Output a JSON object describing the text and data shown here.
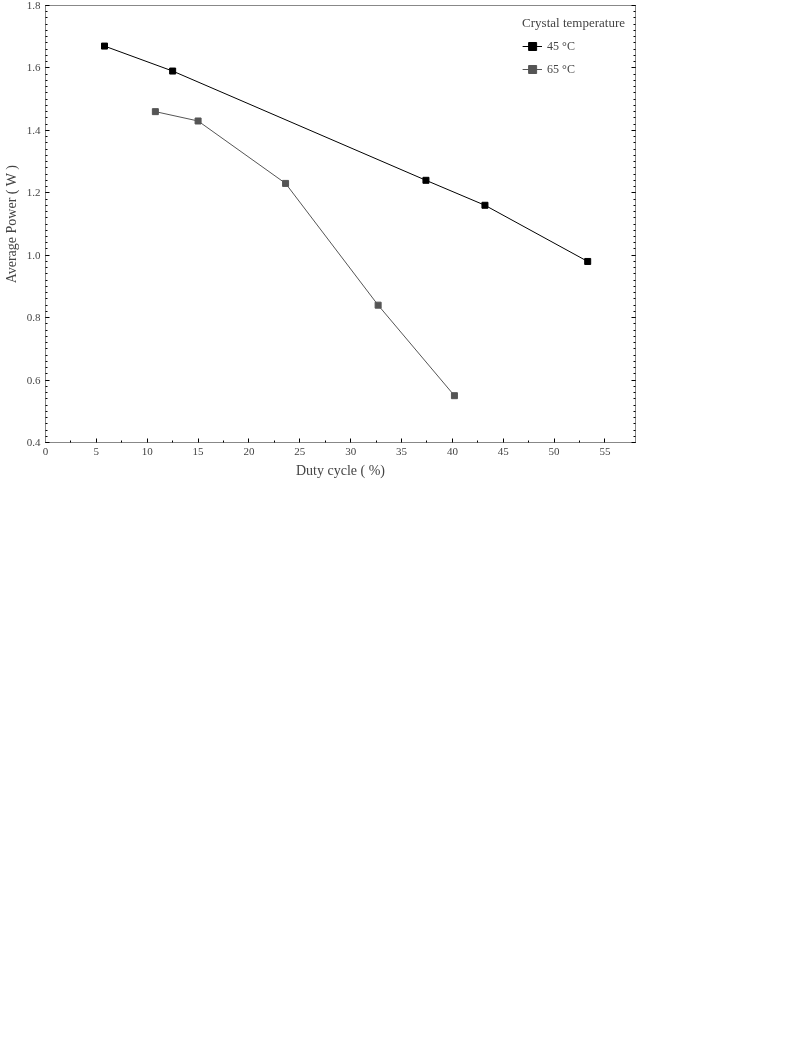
{
  "chart_data": {
    "type": "line",
    "xlabel": "Duty cycle ( %)",
    "ylabel": "Average Power ( W )",
    "legend_title": "Crystal temperature",
    "series": [
      {
        "name": "45 °C",
        "color": "#000000",
        "x": [
          5.8,
          12.5,
          37.4,
          43.2,
          53.3
        ],
        "values": [
          1.67,
          1.59,
          1.24,
          1.16,
          0.98
        ]
      },
      {
        "name": "65 °C",
        "color": "#555555",
        "x": [
          10.8,
          15.0,
          23.6,
          32.7,
          40.2
        ],
        "values": [
          1.46,
          1.43,
          1.23,
          0.84,
          0.55
        ]
      }
    ],
    "xlim": [
      0,
      58
    ],
    "xticks": [
      0,
      5,
      10,
      15,
      20,
      25,
      30,
      35,
      40,
      45,
      50,
      55
    ],
    "ylim": [
      0.4,
      1.8
    ],
    "yticks": [
      {
        "value": 0.4,
        "label": "0.4"
      },
      {
        "value": 0.6,
        "label": "0.6"
      },
      {
        "value": 0.8,
        "label": "0.8"
      },
      {
        "value": 1.0,
        "label": "1.0"
      },
      {
        "value": 1.2,
        "label": "1.2"
      },
      {
        "value": 1.4,
        "label": "1.4"
      },
      {
        "value": 1.6,
        "label": "1.6"
      },
      {
        "value": 1.8,
        "label": "1.8"
      }
    ],
    "marker": "square",
    "line_style": "solid",
    "grid": false,
    "legend": "top right"
  }
}
